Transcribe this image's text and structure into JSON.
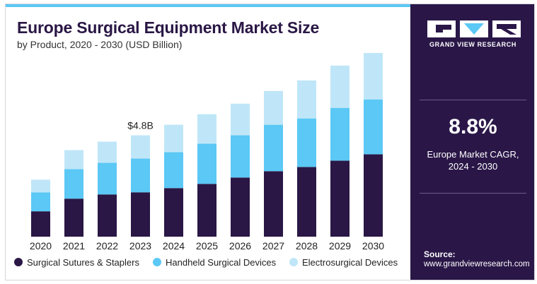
{
  "header": {
    "title": "Europe Surgical Equipment Market Size",
    "subtitle": "by Product, 2020 - 2030 (USD Billion)"
  },
  "chart_data": {
    "type": "bar",
    "stacked": true,
    "categories": [
      "2020",
      "2021",
      "2022",
      "2023",
      "2024",
      "2025",
      "2026",
      "2027",
      "2028",
      "2029",
      "2030"
    ],
    "series": [
      {
        "name": "Surgical Sutures & Staplers",
        "color": "#2a1745",
        "values": [
          1.2,
          1.8,
          2.0,
          2.1,
          2.3,
          2.5,
          2.8,
          3.1,
          3.3,
          3.6,
          3.9
        ]
      },
      {
        "name": "Handheld Surgical Devices",
        "color": "#5bc8f5",
        "values": [
          0.9,
          1.4,
          1.5,
          1.6,
          1.7,
          1.9,
          2.0,
          2.2,
          2.3,
          2.5,
          2.6
        ]
      },
      {
        "name": "Electrosurgical Devices",
        "color": "#bfe6f8",
        "values": [
          0.6,
          0.9,
          1.0,
          1.1,
          1.3,
          1.4,
          1.5,
          1.6,
          1.8,
          2.0,
          2.2
        ]
      }
    ],
    "annotations": [
      {
        "category": "2023",
        "text": "$4.8B"
      }
    ],
    "ylim": [
      0,
      9
    ],
    "grid": false,
    "legend_position": "bottom"
  },
  "sidebar": {
    "brand": "GRAND VIEW RESEARCH",
    "cagr_value": "8.8%",
    "cagr_label_line1": "Europe Market CAGR,",
    "cagr_label_line2": "2024 - 2030",
    "source_label": "Source:",
    "source_url": "www.grandviewresearch.com"
  }
}
